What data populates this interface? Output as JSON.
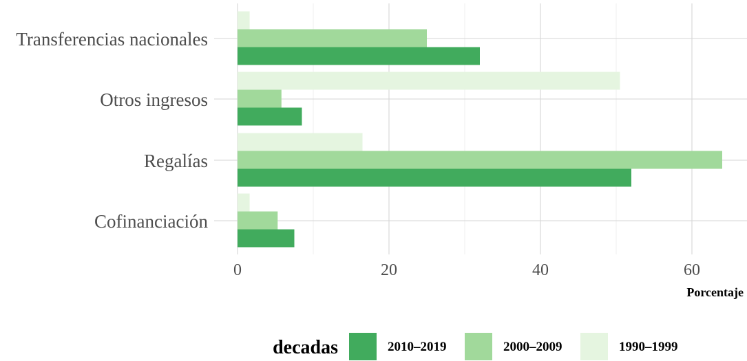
{
  "chart_data": {
    "type": "bar",
    "orientation": "horizontal",
    "categories": [
      "Transferencias nacionales",
      "Otros ingresos",
      "Regalías",
      "Cofinanciación"
    ],
    "series": [
      {
        "name": "2010–2019",
        "color": "#41ab5d",
        "values": [
          32.0,
          8.5,
          52.0,
          7.5
        ]
      },
      {
        "name": "2000–2009",
        "color": "#a1d99b",
        "values": [
          25.0,
          5.8,
          64.0,
          5.3
        ]
      },
      {
        "name": "1990–1999",
        "color": "#e5f5e0",
        "values": [
          1.6,
          50.5,
          16.5,
          1.6
        ]
      }
    ],
    "xlabel": "Porcentaje",
    "ylabel": "",
    "xlim": [
      0,
      65
    ],
    "xticks": [
      "0",
      "20",
      "40",
      "60"
    ],
    "grid": true,
    "legend": {
      "title": "decadas",
      "position": "bottom"
    }
  }
}
